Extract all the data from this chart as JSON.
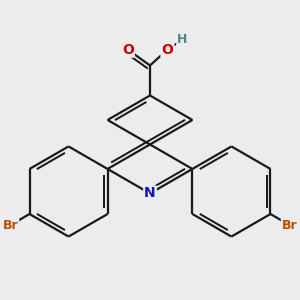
{
  "bg_color": "#ececec",
  "bond_color": "#1a1a1a",
  "bond_width": 1.6,
  "atom_colors": {
    "N": "#1010cc",
    "O": "#cc0000",
    "Br": "#b85000",
    "H": "#4a8a8a",
    "C": "#1a1a1a"
  },
  "font_size_atom": 10,
  "font_size_Br": 9,
  "font_size_H": 9
}
